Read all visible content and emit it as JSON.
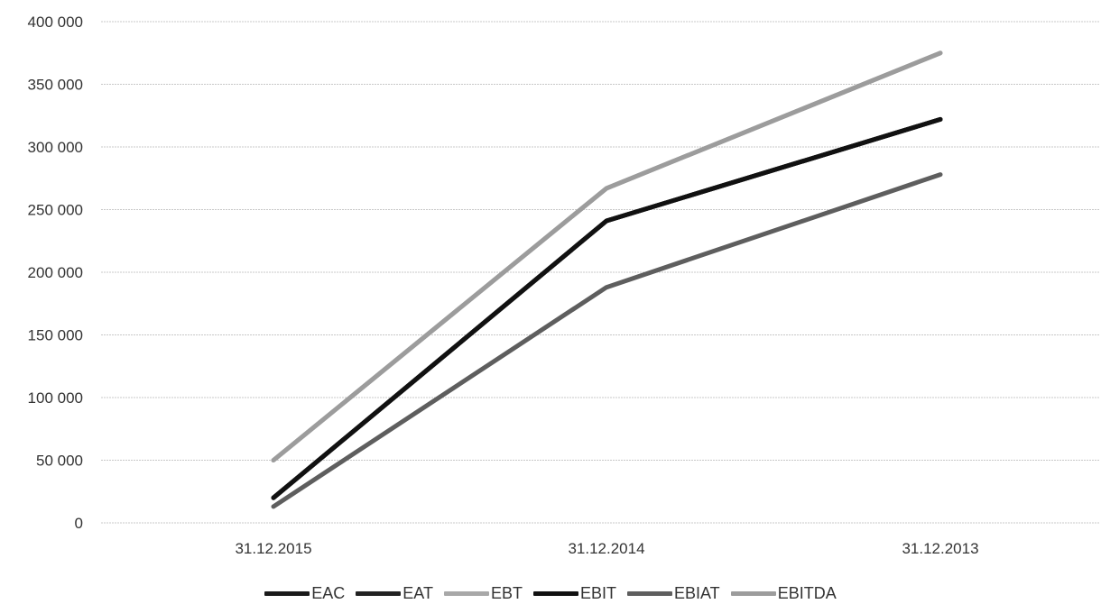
{
  "chart_data": {
    "type": "line",
    "title": "",
    "xlabel": "",
    "ylabel": "",
    "categories": [
      "31.12.2015",
      "31.12.2014",
      "31.12.2013"
    ],
    "ylim": [
      0,
      400000
    ],
    "yticks": [
      0,
      50000,
      100000,
      150000,
      200000,
      250000,
      300000,
      350000,
      400000
    ],
    "ytick_labels": [
      "0",
      "50 000",
      "100 000",
      "150 000",
      "200 000",
      "250 000",
      "300 000",
      "350 000",
      "400 000"
    ],
    "grid": true,
    "legend_position": "bottom",
    "series": [
      {
        "name": "EAC",
        "values": [
          20000,
          241000,
          322000
        ],
        "color": "#1a1a1a"
      },
      {
        "name": "EAT",
        "values": [
          20000,
          241000,
          322000
        ],
        "color": "#222222"
      },
      {
        "name": "EBT",
        "values": [
          50000,
          267000,
          375000
        ],
        "color": "#a8a8a8"
      },
      {
        "name": "EBIT",
        "values": [
          20000,
          241000,
          322000
        ],
        "color": "#111111"
      },
      {
        "name": "EBIAT",
        "values": [
          13000,
          188000,
          278000
        ],
        "color": "#5e5e5e"
      },
      {
        "name": "EBITDA",
        "values": [
          50000,
          267000,
          375000
        ],
        "color": "#9c9c9c"
      }
    ]
  }
}
